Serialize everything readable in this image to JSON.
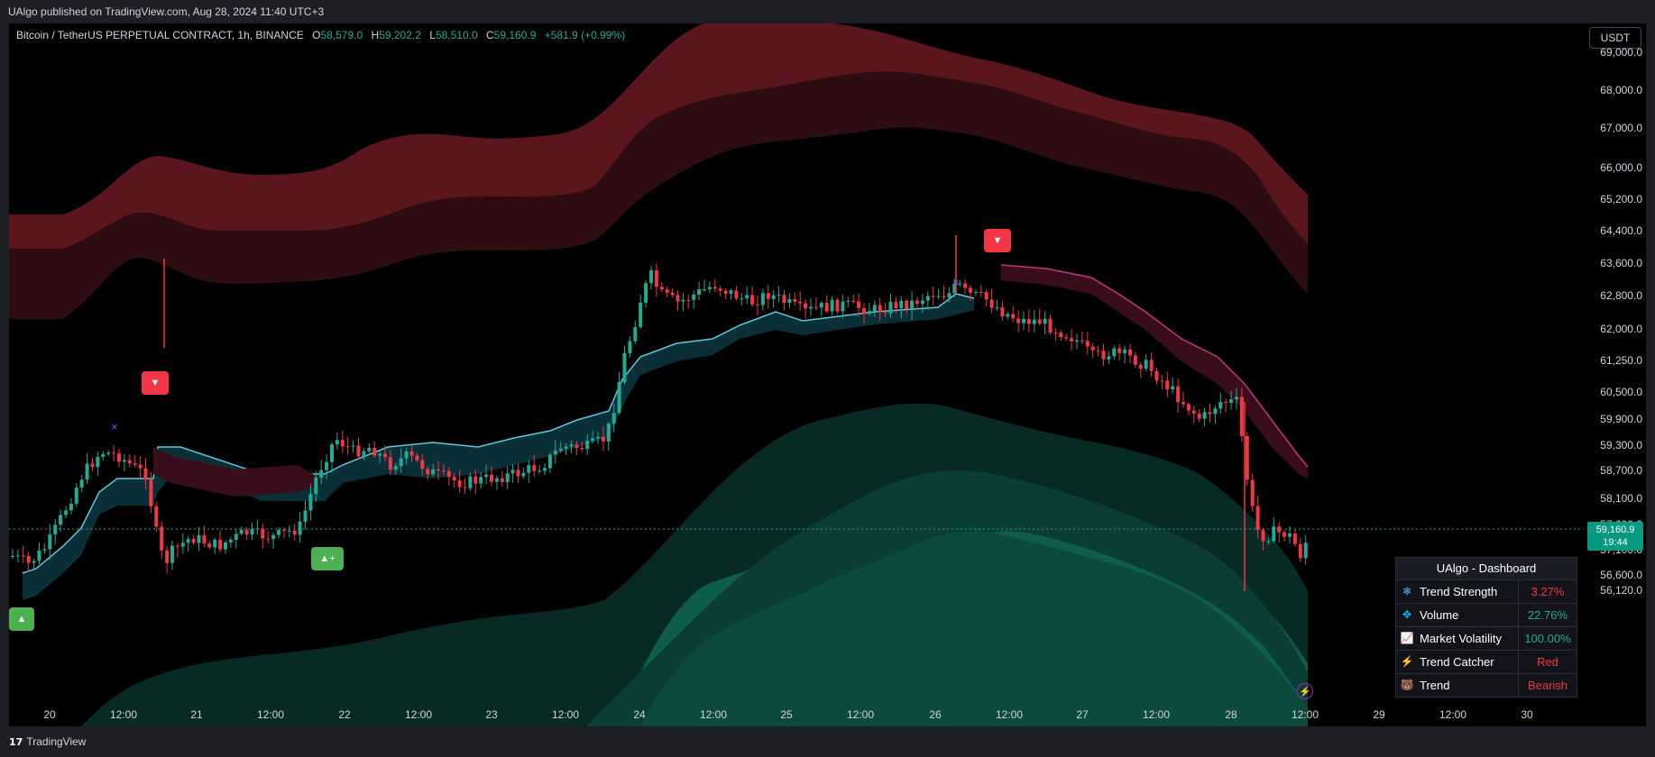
{
  "header": {
    "published": "UAlgo published on TradingView.com, Aug 28, 2024 11:40 UTC+3"
  },
  "symbol": {
    "name": "Bitcoin / TetherUS PERPETUAL CONTRACT, 1h, BINANCE",
    "o_label": "O",
    "o": "58,579.0",
    "h_label": "H",
    "h": "59,202.2",
    "l_label": "L",
    "l": "58,510.0",
    "c_label": "C",
    "c": "59,160.9",
    "change": "+581.9 (+0.99%)"
  },
  "currency_button": "USDT",
  "price_axis": [
    "69,000.0",
    "68,000.0",
    "67,000.0",
    "66,000.0",
    "65,200.0",
    "64,400.0",
    "63,600.0",
    "62,800.0",
    "62,000.0",
    "61,250.0",
    "60,500.0",
    "59,900.0",
    "59,300.0",
    "58,700.0",
    "58,100.0",
    "57,600.0",
    "57,100.0",
    "56,600.0",
    "56,120.0"
  ],
  "current_price": {
    "price": "59,160.9",
    "countdown": "19:44"
  },
  "time_axis": [
    "20",
    "12:00",
    "21",
    "12:00",
    "22",
    "12:00",
    "23",
    "12:00",
    "24",
    "12:00",
    "25",
    "12:00",
    "26",
    "12:00",
    "27",
    "12:00",
    "28",
    "12:00",
    "29",
    "12:00",
    "30"
  ],
  "signals": {
    "sell": "▼",
    "buy": "▲",
    "buy_plus": "▲+"
  },
  "dashboard": {
    "title": "UAlgo - Dashboard",
    "rows": [
      {
        "icon": "❄",
        "label": "Trend Strength",
        "value": "3.27%",
        "color": "#f23645"
      },
      {
        "icon": "✥",
        "label": "Volume",
        "value": "22.76%",
        "color": "#22ab94"
      },
      {
        "icon": "📈",
        "label": "Market Volatility",
        "value": "100.00%",
        "color": "#22ab94"
      },
      {
        "icon": "⚡",
        "label": "Trend Catcher",
        "value": "Red",
        "color": "#f23645"
      },
      {
        "icon": "🐻",
        "label": "Trend",
        "value": "Bearish",
        "color": "#f23645"
      }
    ]
  },
  "footer": {
    "brand": "TradingView"
  },
  "colors": {
    "bull": "#22ab94",
    "bear": "#f23645",
    "band_red": "#6b1a20",
    "band_green": "#0b3a30"
  }
}
